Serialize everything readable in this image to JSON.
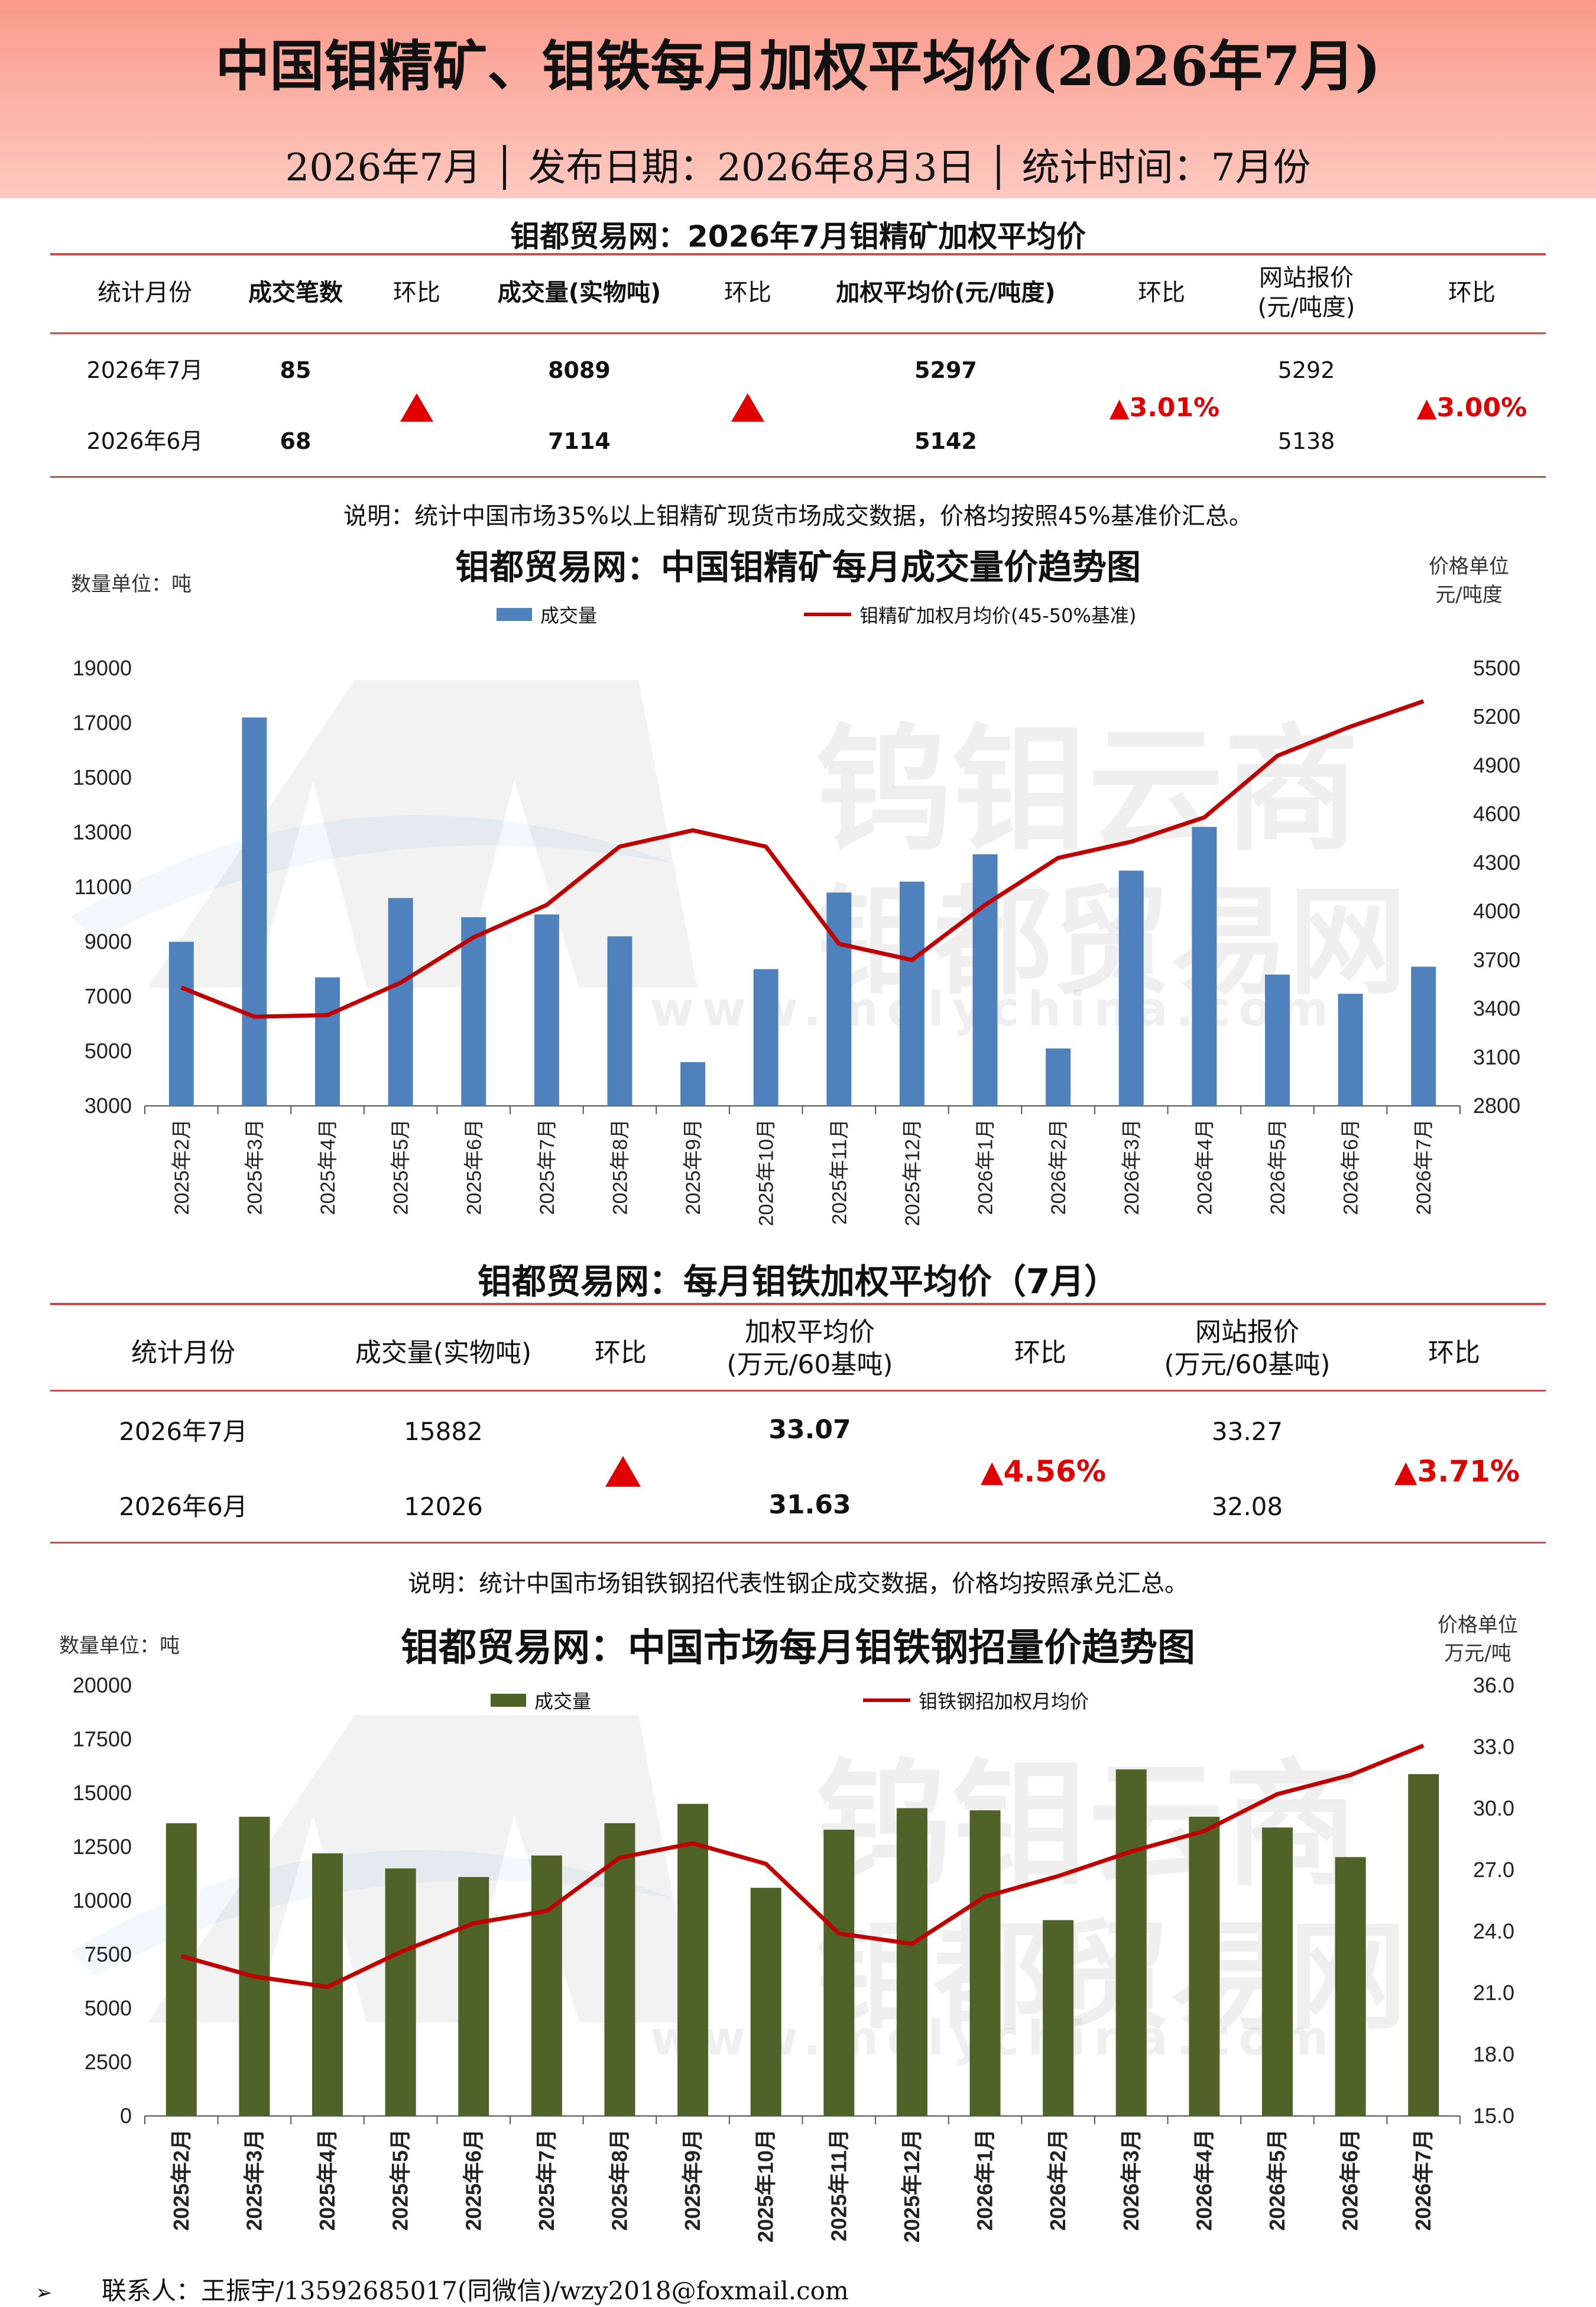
{
  "header": {
    "title": "中国钼精矿、钼铁每月加权平均价(2026年7月)",
    "subtitle": "2026年7月 │ 发布日期：2026年8月3日 │ 统计时间：7月份"
  },
  "ore_table": {
    "title": "钼都贸易网：2026年7月钼精矿加权平均价",
    "headers": [
      "统计月份",
      "成交笔数",
      "环比",
      "成交量(实物吨)",
      "环比",
      "加权平均价(元/吨度)",
      "环比",
      "网站报价\n(元/吨度)",
      "环比"
    ],
    "rows": [
      {
        "month": "2026年7月",
        "deals": "85",
        "volume": "8089",
        "price": "5297",
        "quote": "5292"
      },
      {
        "month": "2026年6月",
        "deals": "68",
        "volume": "7114",
        "price": "5142",
        "quote": "5138"
      }
    ],
    "price_change": "▲3.01%",
    "quote_change": "▲3.00%",
    "note": "说明：统计中国市场35%以上钼精矿现货市场成交数据，价格均按照45%基准价汇总。"
  },
  "ferro_table": {
    "title": "钼都贸易网：每月钼铁加权平均价（7月）",
    "headers": [
      "统计月份",
      "成交量(实物吨)",
      "环比",
      "加权平均价\n(万元/60基吨)",
      "环比",
      "网站报价\n(万元/60基吨)",
      "环比"
    ],
    "rows": [
      {
        "month": "2026年7月",
        "volume": "15882",
        "price": "33.07",
        "quote": "33.27"
      },
      {
        "month": "2026年6月",
        "volume": "12026",
        "price": "31.63",
        "quote": "32.08"
      }
    ],
    "price_change": "▲4.56%",
    "quote_change": "▲3.71%",
    "note": "说明：统计中国市场钼铁钢招代表性钢企成交数据，价格均按照承兑汇总。"
  },
  "watermark": {
    "line1": "钨钼云商",
    "line2": "钼都贸易网",
    "url": "www.molychina.com"
  },
  "colors": {
    "bar1": "#4f81bd",
    "bar2": "#4f6228",
    "line": "#c00000",
    "header": "#fa9a8c",
    "rule": "#c0504d",
    "up": "#e00000"
  },
  "chart_data": [
    {
      "type": "bar",
      "title": "钼都贸易网：中国钼精矿每月成交量价趋势图",
      "left_unit": "数量单位：吨",
      "right_unit": "价格单位\n元/吨度",
      "categories": [
        "2025年2月",
        "2025年3月",
        "2025年4月",
        "2025年5月",
        "2025年6月",
        "2025年7月",
        "2025年8月",
        "2025年9月",
        "2025年10月",
        "2025年11月",
        "2025年12月",
        "2026年1月",
        "2026年2月",
        "2026年3月",
        "2026年4月",
        "2026年5月",
        "2026年6月",
        "2026年7月"
      ],
      "series": [
        {
          "name": "成交量",
          "type": "bar",
          "axis": "left",
          "values": [
            9000,
            17200,
            7700,
            10600,
            9900,
            10000,
            9200,
            4600,
            8000,
            10800,
            11200,
            12200,
            5100,
            11600,
            13200,
            7800,
            7100,
            8089
          ]
        },
        {
          "name": "钼精矿加权月均价(45-50%基准)",
          "type": "line",
          "axis": "right",
          "values": [
            3530,
            3350,
            3360,
            3560,
            3840,
            4040,
            4400,
            4500,
            4400,
            3800,
            3700,
            4040,
            4330,
            4430,
            4580,
            4960,
            5140,
            5297
          ]
        }
      ],
      "ylim_left": [
        3000,
        19000
      ],
      "yticks_left": [
        3000,
        5000,
        7000,
        9000,
        11000,
        13000,
        15000,
        17000,
        19000
      ],
      "ylim_right": [
        2800,
        5500
      ],
      "yticks_right": [
        2800,
        3100,
        3400,
        3700,
        4000,
        4300,
        4600,
        4900,
        5200,
        5500
      ],
      "legend": "top-center",
      "grid": false
    },
    {
      "type": "bar",
      "title": "钼都贸易网：中国市场每月钼铁钢招量价趋势图",
      "left_unit": "数量单位：吨",
      "right_unit": "价格单位\n万元/吨",
      "categories": [
        "2025年2月",
        "2025年3月",
        "2025年4月",
        "2025年5月",
        "2025年6月",
        "2025年7月",
        "2025年8月",
        "2025年9月",
        "2025年10月",
        "2025年11月",
        "2025年12月",
        "2026年1月",
        "2026年2月",
        "2026年3月",
        "2026年4月",
        "2026年5月",
        "2026年6月",
        "2026年7月"
      ],
      "series": [
        {
          "name": "成交量",
          "type": "bar",
          "axis": "left",
          "values": [
            13600,
            13900,
            12200,
            11500,
            11100,
            12100,
            13600,
            14500,
            10600,
            13300,
            14300,
            14200,
            9100,
            16100,
            13900,
            13400,
            12026,
            15882
          ]
        },
        {
          "name": "钼铁钢招加权月均价",
          "type": "line",
          "axis": "right",
          "values": [
            22.8,
            21.8,
            21.3,
            23.0,
            24.4,
            25.0,
            27.6,
            28.3,
            27.3,
            23.9,
            23.4,
            25.7,
            26.7,
            27.9,
            28.9,
            30.7,
            31.63,
            33.07
          ]
        }
      ],
      "ylim_left": [
        0,
        20000
      ],
      "yticks_left": [
        0,
        2500,
        5000,
        7500,
        10000,
        12500,
        15000,
        17500,
        20000
      ],
      "ylim_right": [
        15.0,
        36.0
      ],
      "yticks_right": [
        "15.0",
        "18.0",
        "21.0",
        "24.0",
        "27.0",
        "30.0",
        "33.0",
        "36.0"
      ],
      "legend": "top-center",
      "grid": false
    }
  ],
  "footer": {
    "bullet": "➢",
    "contact": "联系人：王振宇/13592685017(同微信)/wzy2018@foxmail.com"
  }
}
